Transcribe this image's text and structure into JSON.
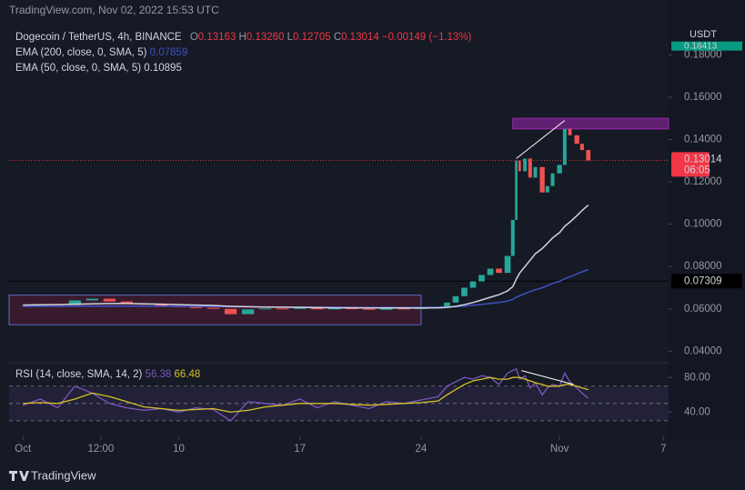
{
  "watermark": "TradingView.com, Nov 02, 2022 15:53 UTC",
  "footer": "TradingView",
  "currency": "USDT",
  "chart_data": {
    "type": "candlestick",
    "ohlc": [
      {
        "key": "O",
        "value": "0.13163"
      },
      {
        "key": "H",
        "value": "0.13260"
      },
      {
        "key": "L",
        "value": "0.12705"
      },
      {
        "key": "C",
        "value": "0.13014"
      }
    ],
    "change": "−0.00149 (−1.13%)",
    "x": [
      0,
      1,
      2,
      3,
      4,
      5,
      6,
      7,
      8,
      9,
      10,
      11,
      12,
      13,
      14,
      15,
      16,
      17,
      18,
      19,
      20,
      21,
      22,
      23,
      24,
      24.5,
      25,
      25.5,
      26,
      26.5,
      27,
      27.5,
      28,
      28.3,
      28.5,
      28.7,
      29,
      29.3,
      29.6,
      30,
      30.3,
      30.6,
      31,
      31.3,
      31.6,
      32,
      32.3,
      32.66
    ],
    "xlim": [
      -0.8,
      37.3
    ],
    "xticks": [
      {
        "value": 0,
        "label": "Oct"
      },
      {
        "value": 4.5,
        "label": "12:00"
      },
      {
        "value": 9,
        "label": "10"
      },
      {
        "value": 16,
        "label": "17"
      },
      {
        "value": 23,
        "label": "24"
      },
      {
        "value": 31,
        "label": "Nov"
      },
      {
        "value": 37,
        "label": "7"
      }
    ],
    "ylim": [
      0.035,
      0.193
    ],
    "yticks": [
      {
        "value": 0.04,
        "label": "0.04000"
      },
      {
        "value": 0.06,
        "label": "0.06000"
      },
      {
        "value": 0.08,
        "label": "0.08000"
      },
      {
        "value": 0.1,
        "label": "0.10000"
      },
      {
        "value": 0.12,
        "label": "0.12000"
      },
      {
        "value": 0.14,
        "label": "0.14000"
      },
      {
        "value": 0.16,
        "label": "0.16000"
      },
      {
        "value": 0.18,
        "label": "0.18000"
      }
    ],
    "up_color": "#26a69a",
    "down_color": "#ef5350",
    "series": [
      {
        "name": "Dogecoin / TetherUS, 4h, BINANCE",
        "kind": "candles",
        "values": [
          0.0615,
          0.0622,
          0.0618,
          0.064,
          0.0648,
          0.0635,
          0.0625,
          0.062,
          0.0612,
          0.0608,
          0.0605,
          0.06,
          0.0575,
          0.0598,
          0.0602,
          0.06,
          0.0605,
          0.0598,
          0.0603,
          0.06,
          0.0596,
          0.0602,
          0.06,
          0.0604,
          0.061,
          0.063,
          0.066,
          0.07,
          0.073,
          0.076,
          0.079,
          0.077,
          0.085,
          0.102,
          0.13,
          0.125,
          0.131,
          0.122,
          0.127,
          0.115,
          0.118,
          0.124,
          0.128,
          0.145,
          0.142,
          0.138,
          0.135,
          0.1301
        ]
      },
      {
        "name": "EMA (200, close, 0, SMA, 5)",
        "kind": "line",
        "color": "#3f51c5",
        "legend_value": "0.07859",
        "values": [
          0.0612,
          0.0612,
          0.0612,
          0.0613,
          0.0613,
          0.0613,
          0.0613,
          0.0613,
          0.0612,
          0.0612,
          0.0612,
          0.0611,
          0.061,
          0.061,
          0.0609,
          0.0609,
          0.0608,
          0.0608,
          0.0608,
          0.0607,
          0.0607,
          0.0607,
          0.0607,
          0.0607,
          0.0608,
          0.0608,
          0.061,
          0.0613,
          0.0617,
          0.0621,
          0.0626,
          0.063,
          0.0637,
          0.0645,
          0.0655,
          0.0662,
          0.0672,
          0.0682,
          0.069,
          0.07,
          0.071,
          0.072,
          0.073,
          0.0742,
          0.0752,
          0.0765,
          0.0775,
          0.0786
        ]
      },
      {
        "name": "EMA (50, close, 0, SMA, 5)",
        "kind": "line",
        "color": "#d1d4dc",
        "legend_value": "0.10895",
        "values": [
          0.0618,
          0.0619,
          0.062,
          0.0622,
          0.0624,
          0.0625,
          0.0625,
          0.0624,
          0.0622,
          0.062,
          0.0618,
          0.0616,
          0.0612,
          0.061,
          0.0609,
          0.0608,
          0.0607,
          0.0606,
          0.0605,
          0.0605,
          0.0604,
          0.0604,
          0.0604,
          0.0604,
          0.0605,
          0.0607,
          0.0612,
          0.062,
          0.063,
          0.0642,
          0.0655,
          0.0667,
          0.0685,
          0.0705,
          0.074,
          0.077,
          0.08,
          0.083,
          0.086,
          0.0885,
          0.091,
          0.0935,
          0.096,
          0.099,
          0.101,
          0.104,
          0.1065,
          0.109
        ]
      }
    ],
    "price_line": {
      "value": 0.13014,
      "label": "0.13014",
      "countdown": "06:05",
      "color": "#f23645"
    },
    "levels": [
      {
        "value": 0.07309,
        "label": "0.07309"
      }
    ],
    "top_badge": {
      "value": 0.18413,
      "label": "0.18413",
      "color": "#089981"
    },
    "boxes": [
      {
        "x": [
          28.3,
          37.3
        ],
        "y": [
          0.145,
          0.15
        ]
      },
      {
        "x": [
          -0.8,
          23
        ],
        "y": [
          0.0525,
          0.0665
        ]
      }
    ],
    "trendlines": [
      {
        "x": [
          28.5,
          31.3
        ],
        "y": [
          0.131,
          0.149
        ]
      }
    ],
    "rsi": {
      "ylim": [
        12,
        96
      ],
      "yticks": [
        {
          "value": 80,
          "label": "80.00"
        },
        {
          "value": 40,
          "label": "40.00"
        }
      ],
      "bands": [
        70,
        50,
        30
      ],
      "name": "RSI (14, close, SMA, 14, 2)",
      "series": [
        {
          "name": "RSI",
          "color": "#7e57c2",
          "legend_value": "56.38",
          "values": [
            48,
            55,
            45,
            70,
            62,
            50,
            45,
            42,
            44,
            40,
            45,
            43,
            30,
            52,
            50,
            48,
            55,
            45,
            52,
            48,
            44,
            52,
            50,
            54,
            58,
            70,
            75,
            80,
            78,
            82,
            80,
            72,
            85,
            88,
            90,
            78,
            82,
            68,
            74,
            60,
            68,
            72,
            70,
            85,
            75,
            68,
            62,
            56
          ]
        },
        {
          "name": "RSI MA",
          "color": "#d4c225",
          "legend_value": "66.48",
          "values": [
            50,
            51,
            50,
            55,
            62,
            58,
            52,
            46,
            44,
            42,
            43,
            44,
            40,
            42,
            46,
            48,
            50,
            50,
            50,
            49,
            48,
            49,
            50,
            51,
            53,
            60,
            66,
            72,
            76,
            78,
            80,
            78,
            78,
            80,
            80,
            80,
            78,
            76,
            74,
            72,
            70,
            70,
            70,
            72,
            72,
            70,
            68,
            66
          ]
        }
      ],
      "trendlines": [
        {
          "x": [
            28.8,
            31.8
          ],
          "y": [
            88,
            72
          ]
        }
      ]
    }
  }
}
